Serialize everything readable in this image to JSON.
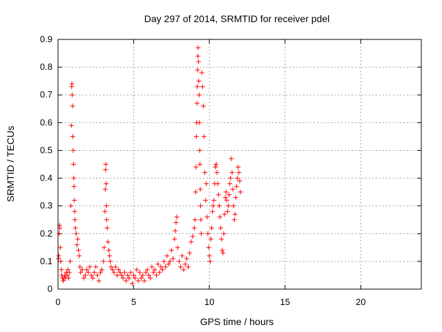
{
  "chart_data": {
    "type": "scatter",
    "title": "Day 297 of 2014, SRMTID for receiver pdel",
    "xlabel": "GPS time / hours",
    "ylabel": "SRMTID / TECUs",
    "xlim": [
      0,
      24
    ],
    "ylim": [
      0,
      0.9
    ],
    "xticks": [
      0,
      5,
      10,
      15,
      20
    ],
    "xtick_labels": [
      "0",
      "5",
      "10",
      "15",
      "20"
    ],
    "yticks": [
      0,
      0.1,
      0.2,
      0.3,
      0.4,
      0.5,
      0.6,
      0.7,
      0.8,
      0.9
    ],
    "ytick_labels": [
      "0",
      "0.1",
      "0.2",
      "0.3",
      "0.4",
      "0.5",
      "0.6",
      "0.7",
      "0.8",
      "0.9"
    ],
    "grid": true,
    "legend": "none",
    "marker": "plus",
    "color": "#ff0000",
    "series": [
      {
        "name": "pdel",
        "points": [
          [
            0.02,
            0.11
          ],
          [
            0.05,
            0.12
          ],
          [
            0.08,
            0.2
          ],
          [
            0.1,
            0.23
          ],
          [
            0.12,
            0.22
          ],
          [
            0.15,
            0.15
          ],
          [
            0.18,
            0.1
          ],
          [
            0.22,
            0.07
          ],
          [
            0.25,
            0.05
          ],
          [
            0.3,
            0.04
          ],
          [
            0.35,
            0.03
          ],
          [
            0.4,
            0.04
          ],
          [
            0.45,
            0.05
          ],
          [
            0.5,
            0.04
          ],
          [
            0.55,
            0.06
          ],
          [
            0.6,
            0.05
          ],
          [
            0.65,
            0.07
          ],
          [
            0.7,
            0.04
          ],
          [
            0.75,
            0.06
          ],
          [
            0.8,
            0.1
          ],
          [
            0.85,
            0.3
          ],
          [
            0.88,
            0.59
          ],
          [
            0.9,
            0.73
          ],
          [
            0.92,
            0.74
          ],
          [
            0.94,
            0.7
          ],
          [
            0.96,
            0.66
          ],
          [
            0.98,
            0.55
          ],
          [
            1.0,
            0.5
          ],
          [
            1.02,
            0.45
          ],
          [
            1.04,
            0.4
          ],
          [
            1.06,
            0.37
          ],
          [
            1.08,
            0.32
          ],
          [
            1.1,
            0.28
          ],
          [
            1.12,
            0.25
          ],
          [
            1.15,
            0.22
          ],
          [
            1.2,
            0.2
          ],
          [
            1.25,
            0.16
          ],
          [
            1.3,
            0.18
          ],
          [
            1.35,
            0.14
          ],
          [
            1.4,
            0.12
          ],
          [
            1.45,
            0.08
          ],
          [
            1.5,
            0.06
          ],
          [
            1.6,
            0.07
          ],
          [
            1.7,
            0.04
          ],
          [
            1.8,
            0.05
          ],
          [
            1.9,
            0.07
          ],
          [
            2.0,
            0.06
          ],
          [
            2.1,
            0.08
          ],
          [
            2.2,
            0.05
          ],
          [
            2.3,
            0.04
          ],
          [
            2.4,
            0.06
          ],
          [
            2.5,
            0.08
          ],
          [
            2.6,
            0.05
          ],
          [
            2.7,
            0.03
          ],
          [
            2.8,
            0.06
          ],
          [
            2.9,
            0.07
          ],
          [
            3.0,
            0.1
          ],
          [
            3.05,
            0.15
          ],
          [
            3.1,
            0.28
          ],
          [
            3.12,
            0.36
          ],
          [
            3.14,
            0.43
          ],
          [
            3.16,
            0.45
          ],
          [
            3.18,
            0.38
          ],
          [
            3.2,
            0.3
          ],
          [
            3.22,
            0.25
          ],
          [
            3.25,
            0.22
          ],
          [
            3.3,
            0.17
          ],
          [
            3.35,
            0.14
          ],
          [
            3.4,
            0.12
          ],
          [
            3.45,
            0.1
          ],
          [
            3.5,
            0.08
          ],
          [
            3.6,
            0.07
          ],
          [
            3.7,
            0.06
          ],
          [
            3.8,
            0.08
          ],
          [
            3.9,
            0.05
          ],
          [
            4.0,
            0.07
          ],
          [
            4.1,
            0.06
          ],
          [
            4.2,
            0.05
          ],
          [
            4.3,
            0.04
          ],
          [
            4.4,
            0.06
          ],
          [
            4.5,
            0.03
          ],
          [
            4.6,
            0.05
          ],
          [
            4.7,
            0.04
          ],
          [
            4.8,
            0.06
          ],
          [
            4.9,
            0.02
          ],
          [
            5.0,
            0.05
          ],
          [
            5.1,
            0.04
          ],
          [
            5.2,
            0.07
          ],
          [
            5.3,
            0.03
          ],
          [
            5.4,
            0.06
          ],
          [
            5.5,
            0.04
          ],
          [
            5.6,
            0.05
          ],
          [
            5.7,
            0.03
          ],
          [
            5.8,
            0.06
          ],
          [
            5.9,
            0.07
          ],
          [
            6.0,
            0.05
          ],
          [
            6.1,
            0.04
          ],
          [
            6.2,
            0.08
          ],
          [
            6.3,
            0.06
          ],
          [
            6.4,
            0.07
          ],
          [
            6.5,
            0.05
          ],
          [
            6.6,
            0.09
          ],
          [
            6.7,
            0.06
          ],
          [
            6.8,
            0.08
          ],
          [
            6.9,
            0.07
          ],
          [
            7.0,
            0.1
          ],
          [
            7.1,
            0.08
          ],
          [
            7.2,
            0.12
          ],
          [
            7.3,
            0.09
          ],
          [
            7.4,
            0.1
          ],
          [
            7.5,
            0.14
          ],
          [
            7.6,
            0.11
          ],
          [
            7.7,
            0.18
          ],
          [
            7.75,
            0.21
          ],
          [
            7.8,
            0.24
          ],
          [
            7.85,
            0.26
          ],
          [
            7.9,
            0.15
          ],
          [
            8.0,
            0.1
          ],
          [
            8.1,
            0.08
          ],
          [
            8.2,
            0.12
          ],
          [
            8.3,
            0.07
          ],
          [
            8.4,
            0.09
          ],
          [
            8.5,
            0.11
          ],
          [
            8.6,
            0.08
          ],
          [
            8.7,
            0.13
          ],
          [
            8.8,
            0.17
          ],
          [
            8.9,
            0.19
          ],
          [
            9.0,
            0.22
          ],
          [
            9.05,
            0.25
          ],
          [
            9.1,
            0.35
          ],
          [
            9.12,
            0.44
          ],
          [
            9.14,
            0.55
          ],
          [
            9.16,
            0.6
          ],
          [
            9.18,
            0.67
          ],
          [
            9.2,
            0.73
          ],
          [
            9.22,
            0.79
          ],
          [
            9.24,
            0.84
          ],
          [
            9.26,
            0.87
          ],
          [
            9.28,
            0.82
          ],
          [
            9.3,
            0.75
          ],
          [
            9.32,
            0.7
          ],
          [
            9.34,
            0.6
          ],
          [
            9.36,
            0.5
          ],
          [
            9.38,
            0.45
          ],
          [
            9.4,
            0.36
          ],
          [
            9.42,
            0.3
          ],
          [
            9.44,
            0.25
          ],
          [
            9.46,
            0.2
          ],
          [
            9.5,
            0.78
          ],
          [
            9.55,
            0.73
          ],
          [
            9.6,
            0.66
          ],
          [
            9.65,
            0.55
          ],
          [
            9.7,
            0.42
          ],
          [
            9.75,
            0.32
          ],
          [
            9.8,
            0.38
          ],
          [
            9.85,
            0.26
          ],
          [
            9.9,
            0.2
          ],
          [
            9.95,
            0.15
          ],
          [
            10.0,
            0.12
          ],
          [
            10.05,
            0.1
          ],
          [
            10.1,
            0.18
          ],
          [
            10.15,
            0.22
          ],
          [
            10.2,
            0.28
          ],
          [
            10.25,
            0.3
          ],
          [
            10.3,
            0.32
          ],
          [
            10.35,
            0.38
          ],
          [
            10.4,
            0.44
          ],
          [
            10.45,
            0.45
          ],
          [
            10.5,
            0.42
          ],
          [
            10.55,
            0.38
          ],
          [
            10.6,
            0.34
          ],
          [
            10.65,
            0.3
          ],
          [
            10.7,
            0.26
          ],
          [
            10.75,
            0.22
          ],
          [
            10.8,
            0.18
          ],
          [
            10.85,
            0.14
          ],
          [
            10.9,
            0.13
          ],
          [
            10.95,
            0.2
          ],
          [
            11.0,
            0.27
          ],
          [
            11.05,
            0.33
          ],
          [
            11.1,
            0.35
          ],
          [
            11.15,
            0.32
          ],
          [
            11.2,
            0.28
          ],
          [
            11.25,
            0.3
          ],
          [
            11.3,
            0.34
          ],
          [
            11.35,
            0.38
          ],
          [
            11.4,
            0.4
          ],
          [
            11.45,
            0.47
          ],
          [
            11.5,
            0.42
          ],
          [
            11.55,
            0.36
          ],
          [
            11.6,
            0.3
          ],
          [
            11.65,
            0.25
          ],
          [
            11.7,
            0.27
          ],
          [
            11.75,
            0.33
          ],
          [
            11.8,
            0.37
          ],
          [
            11.85,
            0.4
          ],
          [
            11.9,
            0.44
          ],
          [
            11.95,
            0.42
          ],
          [
            12.0,
            0.39
          ],
          [
            12.05,
            0.35
          ]
        ]
      }
    ]
  }
}
